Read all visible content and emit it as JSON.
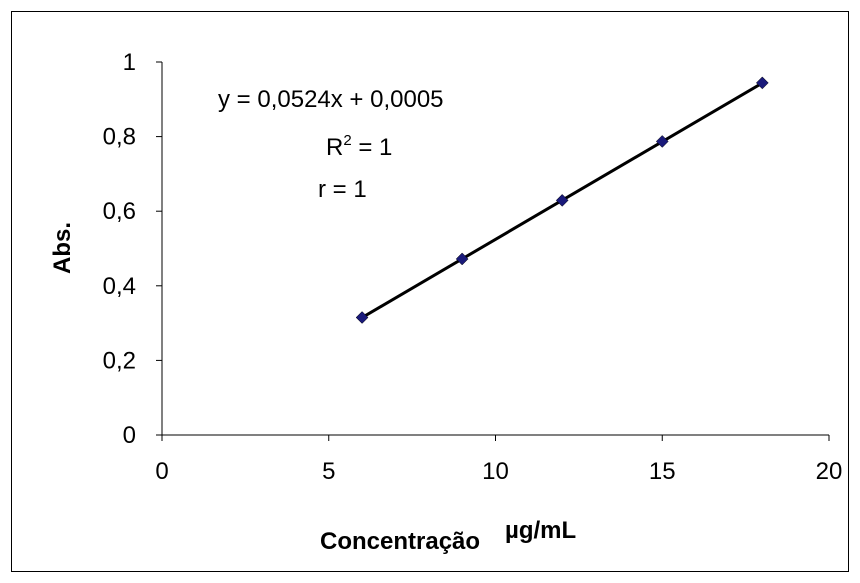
{
  "chart_data": {
    "type": "scatter",
    "x": [
      6,
      9,
      12,
      15,
      18
    ],
    "y": [
      0.315,
      0.472,
      0.629,
      0.787,
      0.944
    ],
    "xlim": [
      0,
      20
    ],
    "ylim": [
      0,
      1
    ],
    "xticks": [
      0,
      5,
      10,
      15,
      20
    ],
    "yticks": [
      0,
      0.2,
      0.4,
      0.6,
      0.8,
      1
    ],
    "x_tick_labels": [
      "0",
      "5",
      "10",
      "15",
      "20"
    ],
    "y_tick_labels": [
      "0",
      "0,2",
      "0,4",
      "0,6",
      "0,8",
      "1"
    ],
    "xlabel": "Concentração",
    "xlabel_unit": "µg/mL",
    "ylabel": "Abs.",
    "trendline": {
      "slope": 0.0524,
      "intercept": 0.0005,
      "color": "#000000"
    },
    "marker_color": "#1a1a7a",
    "grid": false,
    "annotations": {
      "equation": "y = 0,0524x + 0,0005",
      "r2_base": "R",
      "r2_sup": "2",
      "r2_rest": " = 1",
      "r": "r = 1"
    }
  }
}
